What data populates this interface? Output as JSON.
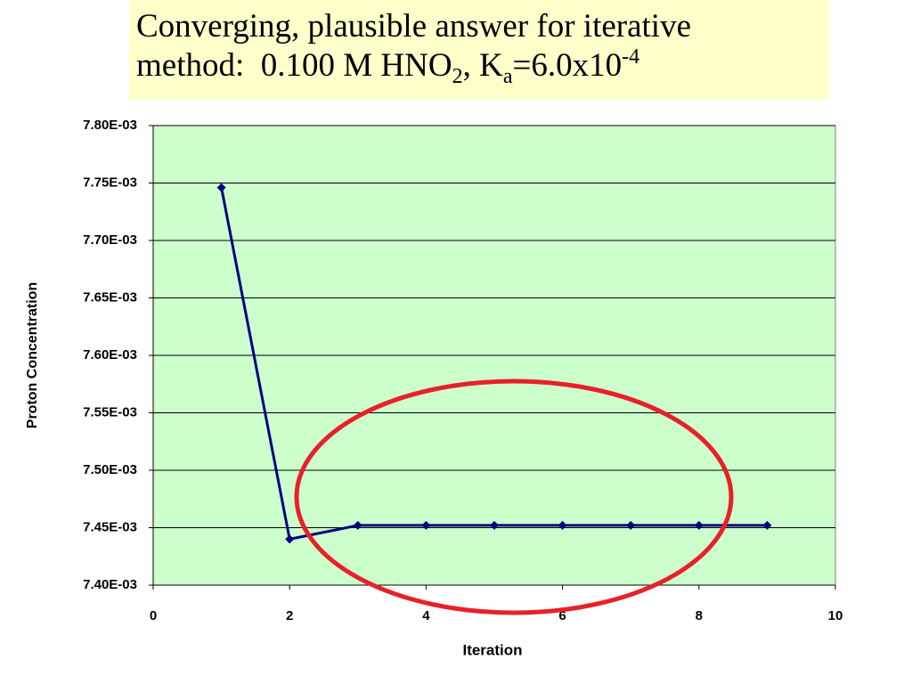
{
  "chart_data": {
    "type": "line",
    "title_lines": [
      [
        {
          "text": "Converging, plausible answer for iterative",
          "style": "normal"
        }
      ],
      [
        {
          "text": "method:  0.100 M HNO",
          "style": "normal"
        },
        {
          "text": "2",
          "style": "sub"
        },
        {
          "text": ", K",
          "style": "normal"
        },
        {
          "text": "a",
          "style": "sub"
        },
        {
          "text": "=6.0x10",
          "style": "normal"
        },
        {
          "text": "-4",
          "style": "sup"
        }
      ]
    ],
    "x_label": "Iteration",
    "y_label": "Proton Concentration",
    "x": [
      1,
      2,
      3,
      4,
      5,
      6,
      7,
      8,
      9
    ],
    "series": [
      {
        "color": "#000080",
        "values": [
          0.007746,
          0.00744,
          0.007452,
          0.007452,
          0.007452,
          0.007452,
          0.007452,
          0.007452,
          0.007452
        ]
      }
    ],
    "xlim": [
      0,
      10
    ],
    "xticks": [
      0,
      2,
      4,
      6,
      8,
      10
    ],
    "ylim": [
      0.0074,
      0.0078
    ],
    "yticks": [
      {
        "value": 0.0074,
        "label": "7.40E-03"
      },
      {
        "value": 0.00745,
        "label": "7.45E-03"
      },
      {
        "value": 0.0075,
        "label": "7.50E-03"
      },
      {
        "value": 0.00755,
        "label": "7.55E-03"
      },
      {
        "value": 0.0076,
        "label": "7.60E-03"
      },
      {
        "value": 0.00765,
        "label": "7.65E-03"
      },
      {
        "value": 0.0077,
        "label": "7.70E-03"
      },
      {
        "value": 0.00775,
        "label": "7.75E-03"
      },
      {
        "value": 0.0078,
        "label": "7.80E-03"
      }
    ],
    "grid": true,
    "plot_background": "#ccffcc"
  }
}
